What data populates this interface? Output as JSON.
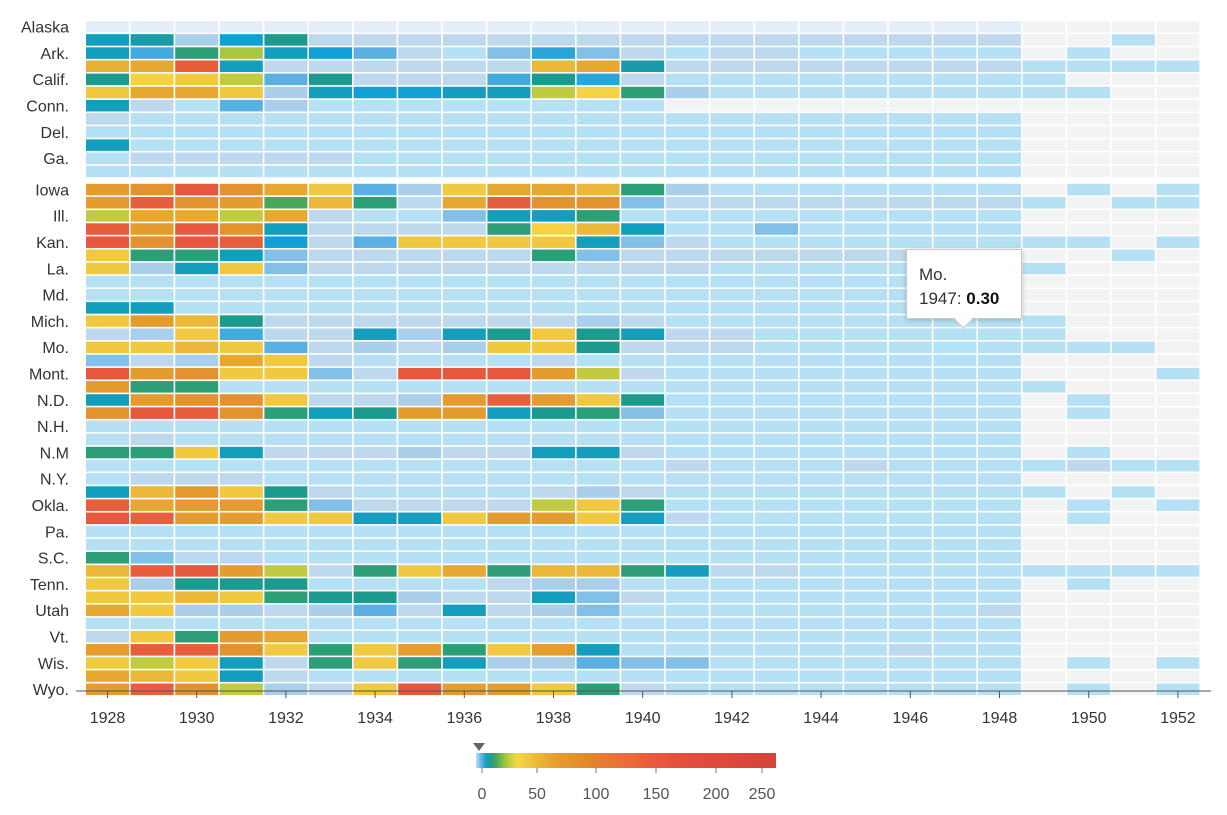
{
  "chart_data": {
    "type": "heatmap",
    "title": "",
    "x": [
      1928,
      1929,
      1930,
      1931,
      1932,
      1933,
      1934,
      1935,
      1936,
      1937,
      1938,
      1939,
      1940,
      1941,
      1942,
      1943,
      1944,
      1945,
      1946,
      1947,
      1948,
      1949,
      1950,
      1951,
      1952
    ],
    "x_tick_labels": [
      "1928",
      "1930",
      "1932",
      "1934",
      "1936",
      "1938",
      "1940",
      "1942",
      "1944",
      "1946",
      "1948",
      "1950",
      "1952"
    ],
    "rows": [
      "Alaska",
      "",
      "Ark.",
      "",
      "Calif.",
      "",
      "Conn.",
      "",
      "Del.",
      "",
      "Ga.",
      "",
      "Iowa",
      "",
      "Ill.",
      "",
      "Kan.",
      "",
      "La.",
      "",
      "Md.",
      "",
      "Mich.",
      "",
      "Mo.",
      "",
      "Mont.",
      "",
      "N.D.",
      "",
      "N.H.",
      "",
      "N.M",
      "",
      "N.Y.",
      "",
      "Okla.",
      "",
      "Pa.",
      "",
      "S.C.",
      "",
      "Tenn.",
      "",
      "Utah",
      "",
      "Vt.",
      "",
      "Wis.",
      "",
      "Wyo."
    ],
    "gap_after_rows": [
      11
    ],
    "values": [
      [
        0,
        0,
        0,
        0,
        0,
        0,
        0,
        0,
        0,
        0,
        0,
        0,
        0,
        0,
        0,
        0,
        0,
        0,
        0,
        0,
        0,
        null,
        null,
        null,
        null
      ],
      [
        8,
        9,
        2,
        7,
        10,
        1,
        1,
        1,
        1,
        1,
        1,
        1,
        1,
        1,
        1,
        1,
        1,
        1,
        1,
        1,
        1,
        null,
        null,
        0.5,
        null
      ],
      [
        8,
        5,
        12,
        22,
        8,
        7,
        4,
        1,
        0.5,
        3,
        6,
        3,
        1,
        0.5,
        1,
        1,
        0.5,
        0.5,
        0.5,
        0.5,
        0.5,
        null,
        0.5,
        null,
        null
      ],
      [
        55,
        60,
        150,
        8,
        1,
        1,
        1,
        1,
        1,
        1,
        50,
        60,
        9,
        1,
        1,
        1,
        1,
        1,
        1,
        1,
        1,
        0.5,
        0.5,
        0.5,
        0.5
      ],
      [
        10,
        35,
        40,
        25,
        4,
        10,
        1,
        1,
        1,
        5,
        10,
        6,
        1,
        0.5,
        0.5,
        0.5,
        0.5,
        0.5,
        0.5,
        0.5,
        0.5,
        0.5,
        null,
        null,
        null
      ],
      [
        40,
        60,
        60,
        40,
        2,
        8,
        7,
        7,
        8,
        8,
        25,
        35,
        12,
        2,
        0.5,
        0.5,
        0.5,
        0.5,
        0.5,
        0.5,
        0.5,
        0.5,
        0.5,
        null,
        null
      ],
      [
        8,
        1,
        0.5,
        4,
        2,
        0.5,
        0.5,
        0.5,
        0.5,
        0.5,
        0.5,
        0.5,
        0.5,
        null,
        null,
        null,
        null,
        null,
        null,
        null,
        null,
        null,
        null,
        null,
        null
      ],
      [
        1,
        0.5,
        0.5,
        0.5,
        0.5,
        0.5,
        0.5,
        0.5,
        0.5,
        0.5,
        0.5,
        0.5,
        0.5,
        0.5,
        0.5,
        0.5,
        0.5,
        0.5,
        0.5,
        0.5,
        0.5,
        null,
        null,
        null,
        null
      ],
      [
        0.5,
        0.5,
        0.5,
        0.5,
        0.5,
        0.5,
        0.5,
        0.5,
        0.5,
        0.5,
        0.5,
        0.5,
        0.5,
        0.5,
        0.5,
        0.5,
        0.5,
        0.5,
        0.5,
        0.5,
        0.5,
        null,
        null,
        null,
        null
      ],
      [
        8,
        0.5,
        0.5,
        0.5,
        0.5,
        0.5,
        0.5,
        0.5,
        0.5,
        0.5,
        0.5,
        0.5,
        0.5,
        0.5,
        0.5,
        0.5,
        0.5,
        0.5,
        0.5,
        0.5,
        0.5,
        null,
        null,
        null,
        null
      ],
      [
        0.5,
        1,
        1,
        1,
        1,
        1,
        0.5,
        0.5,
        0.5,
        0.5,
        0.5,
        0.5,
        0.5,
        0.5,
        0.5,
        0.5,
        0.5,
        0.5,
        0.5,
        0.5,
        0.5,
        null,
        null,
        null,
        null
      ],
      [
        0.5,
        0.5,
        0.5,
        0.5,
        0.5,
        0.5,
        0.5,
        0.5,
        0.5,
        0.5,
        0.5,
        0.5,
        0.5,
        0.5,
        0.5,
        0.5,
        0.5,
        0.5,
        0.5,
        0.5,
        0.5,
        null,
        null,
        null,
        null
      ],
      [
        70,
        80,
        160,
        80,
        60,
        40,
        4,
        2,
        40,
        60,
        60,
        50,
        12,
        2,
        0.5,
        0.5,
        0.5,
        0.5,
        0.5,
        0.5,
        0.5,
        null,
        0.5,
        null,
        0.5
      ],
      [
        70,
        150,
        80,
        70,
        15,
        50,
        12,
        1,
        60,
        150,
        80,
        80,
        3,
        1,
        1,
        1,
        1,
        1,
        1,
        1,
        1,
        0.5,
        null,
        0.5,
        0.5
      ],
      [
        25,
        60,
        60,
        25,
        60,
        1,
        0.5,
        0.5,
        3,
        8,
        8,
        12,
        0.5,
        0.5,
        0.5,
        0.5,
        0.5,
        0.5,
        0.5,
        0.5,
        0.5,
        null,
        null,
        null,
        null
      ],
      [
        150,
        70,
        160,
        80,
        8,
        1,
        1,
        1,
        1,
        12,
        35,
        50,
        8,
        0.5,
        0.5,
        3,
        0.5,
        0.5,
        0.5,
        0.5,
        0.5,
        null,
        null,
        null,
        null
      ],
      [
        160,
        80,
        160,
        150,
        7,
        1,
        4,
        40,
        40,
        40,
        40,
        8,
        3,
        1,
        0.5,
        0.5,
        0.5,
        0.5,
        0.5,
        0.5,
        0.5,
        0.5,
        0.5,
        null,
        0.5
      ],
      [
        40,
        12,
        12,
        8,
        3,
        1,
        1,
        1,
        1,
        1,
        12,
        3,
        1,
        1,
        1,
        1,
        1,
        1,
        1,
        1,
        1,
        null,
        null,
        0.5,
        null
      ],
      [
        40,
        2,
        8,
        40,
        3,
        1,
        1,
        1,
        1,
        1,
        1,
        1,
        1,
        1,
        0.5,
        0.5,
        0.5,
        0.5,
        0.5,
        0.5,
        0.5,
        0.5,
        null,
        null,
        null
      ],
      [
        0.5,
        0.5,
        0.5,
        0.5,
        0.5,
        0.5,
        0.5,
        0.5,
        0.5,
        0.5,
        0.5,
        0.5,
        0.5,
        0.5,
        0.5,
        0.5,
        0.5,
        0.5,
        0.5,
        0.5,
        0.5,
        null,
        null,
        null,
        null
      ],
      [
        0.5,
        0.5,
        0.5,
        0.5,
        0.5,
        0.5,
        0.5,
        0.5,
        0.5,
        0.5,
        0.5,
        0.5,
        0.5,
        0.5,
        0.5,
        0.5,
        0.5,
        0.5,
        0.5,
        0.5,
        0.5,
        null,
        null,
        null,
        null
      ],
      [
        8,
        8,
        0.5,
        0.5,
        0.5,
        0.5,
        0.5,
        0.5,
        0.5,
        0.5,
        0.5,
        0.5,
        0.5,
        0.5,
        0.5,
        0.5,
        0.5,
        0.5,
        0.5,
        0.5,
        0.5,
        null,
        null,
        null,
        null
      ],
      [
        40,
        70,
        50,
        10,
        1,
        1,
        1,
        1,
        1,
        1,
        1,
        2,
        1,
        0.5,
        0.5,
        0.5,
        0.5,
        0.5,
        0.5,
        0.5,
        0.5,
        0.5,
        null,
        null,
        null
      ],
      [
        1,
        2,
        40,
        5,
        1,
        1,
        8,
        2,
        8,
        10,
        40,
        10,
        8,
        1,
        1,
        0.5,
        0.5,
        0.5,
        0.5,
        0.5,
        0.5,
        0.5,
        null,
        null,
        null
      ],
      [
        40,
        40,
        50,
        40,
        4,
        1,
        2,
        1,
        2,
        40,
        40,
        10,
        1,
        1,
        1,
        0.5,
        0.5,
        0.5,
        0.5,
        0.3,
        0.5,
        0.5,
        0.5,
        0.5,
        null
      ],
      [
        3,
        1,
        2,
        60,
        40,
        1,
        0.5,
        0.5,
        0.5,
        0.5,
        1,
        0.5,
        0.5,
        0.5,
        0.5,
        0.5,
        0.5,
        0.5,
        0.5,
        0.5,
        0.5,
        null,
        null,
        null,
        null
      ],
      [
        160,
        70,
        80,
        40,
        40,
        3,
        1,
        160,
        160,
        160,
        70,
        25,
        1,
        0.5,
        0.5,
        0.5,
        0.5,
        0.5,
        0.5,
        0.5,
        0.5,
        null,
        null,
        null,
        0.5
      ],
      [
        70,
        12,
        12,
        0.5,
        0.5,
        0.5,
        0.5,
        0.5,
        0.5,
        0.5,
        0.5,
        0.5,
        0.5,
        0.5,
        0.5,
        0.5,
        0.5,
        0.5,
        0.5,
        0.5,
        0.5,
        0.5,
        null,
        null,
        null
      ],
      [
        8,
        70,
        80,
        80,
        40,
        1,
        1,
        2,
        70,
        150,
        70,
        40,
        10,
        0.5,
        0.5,
        0.5,
        0.5,
        0.5,
        0.5,
        0.5,
        0.5,
        null,
        0.5,
        null,
        null
      ],
      [
        80,
        160,
        150,
        80,
        12,
        8,
        10,
        70,
        70,
        8,
        10,
        12,
        3,
        0.5,
        0.5,
        0.5,
        0.5,
        0.5,
        0.5,
        0.5,
        0.5,
        null,
        0.5,
        null,
        null
      ],
      [
        0.5,
        0.5,
        0.5,
        0.5,
        0.5,
        0.5,
        0.5,
        0.5,
        0.5,
        0.5,
        0.5,
        0.5,
        0.5,
        0.5,
        0.5,
        0.5,
        0.5,
        0.5,
        0.5,
        0.5,
        0.5,
        null,
        null,
        null,
        null
      ],
      [
        0.5,
        1,
        0.5,
        0.5,
        0.5,
        0.5,
        0.5,
        0.5,
        0.5,
        0.5,
        0.5,
        0.5,
        0.5,
        0.5,
        0.5,
        0.5,
        0.5,
        0.5,
        0.5,
        0.5,
        0.5,
        null,
        null,
        null,
        null
      ],
      [
        12,
        12,
        40,
        8,
        1,
        1,
        1,
        2,
        1,
        1,
        8,
        8,
        1,
        0.5,
        0.5,
        0.5,
        0.5,
        0.5,
        0.5,
        0.5,
        0.5,
        null,
        0.5,
        null,
        null
      ],
      [
        0.5,
        0.5,
        0.5,
        0.5,
        0.5,
        0.5,
        0.5,
        0.5,
        0.5,
        0.5,
        0.5,
        0.5,
        0.5,
        1,
        0.5,
        0.5,
        0.5,
        1,
        0.5,
        0.5,
        0.5,
        0.5,
        1,
        0.5,
        0.5
      ],
      [
        0.5,
        1,
        1,
        1,
        0.5,
        0.5,
        0.5,
        0.5,
        0.5,
        0.5,
        0.5,
        0.5,
        0.5,
        0.5,
        0.5,
        0.5,
        0.5,
        0.5,
        0.5,
        0.5,
        0.5,
        null,
        null,
        null,
        null
      ],
      [
        8,
        50,
        70,
        40,
        10,
        1,
        0.5,
        0.5,
        0.5,
        0.5,
        1,
        2,
        1,
        0.5,
        0.5,
        0.5,
        0.5,
        0.5,
        0.5,
        0.5,
        0.5,
        0.5,
        null,
        0.5,
        null
      ],
      [
        150,
        60,
        70,
        70,
        12,
        3,
        1,
        1,
        1,
        1,
        25,
        40,
        12,
        0.5,
        0.5,
        0.5,
        0.5,
        0.5,
        0.5,
        0.5,
        0.5,
        null,
        0.5,
        null,
        0.5
      ],
      [
        160,
        150,
        70,
        70,
        40,
        40,
        8,
        8,
        40,
        70,
        70,
        40,
        8,
        1,
        0.5,
        0.5,
        0.5,
        0.5,
        0.5,
        0.5,
        0.5,
        null,
        0.5,
        null,
        null
      ],
      [
        0.5,
        0.5,
        0.5,
        0.5,
        0.5,
        0.5,
        0.5,
        0.5,
        0.5,
        0.5,
        0.5,
        0.5,
        0.5,
        0.5,
        0.5,
        0.5,
        0.5,
        0.5,
        0.5,
        0.5,
        0.5,
        null,
        null,
        null,
        null
      ],
      [
        0.5,
        0.5,
        0.5,
        0.5,
        0.5,
        0.5,
        0.5,
        0.5,
        0.5,
        0.5,
        0.5,
        0.5,
        0.5,
        0.5,
        0.5,
        0.5,
        0.5,
        0.5,
        0.5,
        0.5,
        0.5,
        null,
        null,
        null,
        null
      ],
      [
        12,
        3,
        1,
        1,
        0.5,
        0.5,
        0.5,
        0.5,
        0.5,
        0.5,
        0.5,
        0.5,
        0.5,
        0.5,
        0.5,
        0.5,
        0.5,
        0.5,
        0.5,
        0.5,
        0.5,
        null,
        null,
        null,
        null
      ],
      [
        50,
        150,
        160,
        70,
        25,
        1,
        12,
        40,
        60,
        12,
        50,
        50,
        12,
        8,
        1,
        1,
        0.5,
        0.5,
        0.5,
        0.5,
        0.5,
        0.5,
        0.5,
        0.5,
        0.5
      ],
      [
        40,
        2,
        10,
        10,
        10,
        0.5,
        0.5,
        0.5,
        0.5,
        1,
        2,
        2,
        0.5,
        0.5,
        0.5,
        0.5,
        0.5,
        0.5,
        0.5,
        0.5,
        0.5,
        null,
        0.5,
        null,
        null
      ],
      [
        40,
        40,
        50,
        40,
        12,
        10,
        10,
        2,
        1,
        1,
        8,
        3,
        1,
        0.5,
        0.5,
        0.5,
        0.5,
        0.5,
        0.5,
        0.5,
        0.5,
        null,
        null,
        null,
        null
      ],
      [
        60,
        40,
        2,
        2,
        1,
        2,
        4,
        1,
        8,
        1,
        2,
        3,
        0.5,
        0.5,
        0.5,
        0.5,
        0.5,
        0.5,
        0.5,
        0.5,
        1,
        null,
        null,
        null,
        null
      ],
      [
        0.5,
        0.5,
        0.5,
        0.5,
        0.5,
        0.5,
        0.5,
        0.5,
        0.5,
        0.5,
        0.5,
        0.5,
        0.5,
        0.5,
        0.5,
        0.5,
        0.5,
        0.5,
        0.5,
        0.5,
        0.5,
        null,
        null,
        null,
        null
      ],
      [
        1,
        40,
        12,
        70,
        60,
        0.5,
        0.5,
        0.5,
        0.5,
        0.5,
        0.5,
        0.5,
        0.5,
        0.5,
        0.5,
        0.5,
        0.5,
        0.5,
        0.5,
        0.5,
        0.5,
        null,
        null,
        null,
        null
      ],
      [
        70,
        150,
        150,
        80,
        40,
        12,
        40,
        70,
        12,
        40,
        70,
        8,
        0.5,
        0.5,
        0.5,
        0.5,
        0.5,
        0.5,
        1,
        0.5,
        0.5,
        null,
        null,
        null,
        null
      ],
      [
        40,
        25,
        40,
        8,
        1,
        12,
        40,
        12,
        8,
        2,
        2,
        4,
        3,
        3,
        0.5,
        0.5,
        0.5,
        0.5,
        0.5,
        0.5,
        0.5,
        null,
        0.5,
        null,
        0.5
      ],
      [
        60,
        50,
        40,
        8,
        1,
        0.5,
        0.5,
        0.5,
        0.5,
        0.5,
        0.5,
        0.5,
        0.5,
        0.5,
        0.5,
        0.5,
        0.5,
        0.5,
        0.5,
        0.5,
        0.5,
        null,
        null,
        null,
        null
      ],
      [
        70,
        150,
        80,
        25,
        2,
        1,
        40,
        160,
        70,
        70,
        40,
        12,
        1,
        0.5,
        0.5,
        0.5,
        0.5,
        0.5,
        0.5,
        0.5,
        0.5,
        null,
        0.5,
        null,
        0.5
      ]
    ],
    "missing_color": "#f3f3f3",
    "colorscale": [
      {
        "v": 0,
        "c": "#e4eef8"
      },
      {
        "v": 0.3,
        "c": "#b3e4f8"
      },
      {
        "v": 1,
        "c": "#bed9ee"
      },
      {
        "v": 2,
        "c": "#a9cfeb"
      },
      {
        "v": 4,
        "c": "#5ab0e2"
      },
      {
        "v": 7,
        "c": "#10a0d5"
      },
      {
        "v": 10,
        "c": "#1d9a90"
      },
      {
        "v": 14,
        "c": "#3da35f"
      },
      {
        "v": 22,
        "c": "#a9c63f"
      },
      {
        "v": 32,
        "c": "#f7d846"
      },
      {
        "v": 45,
        "c": "#edc03c"
      },
      {
        "v": 65,
        "c": "#e5a02f"
      },
      {
        "v": 90,
        "c": "#e28b2c"
      },
      {
        "v": 130,
        "c": "#ea6a3b"
      },
      {
        "v": 170,
        "c": "#e5503c"
      },
      {
        "v": 260,
        "c": "#d5443a"
      }
    ],
    "legend": {
      "ticks": [
        "0",
        "50",
        "100",
        "150",
        "200",
        "250"
      ],
      "min": 0,
      "max": 260,
      "marker_value": 0.3
    },
    "tooltip": {
      "state": "Mo.",
      "year": "1947",
      "value": "0.30",
      "row": 24,
      "col": 19
    }
  }
}
